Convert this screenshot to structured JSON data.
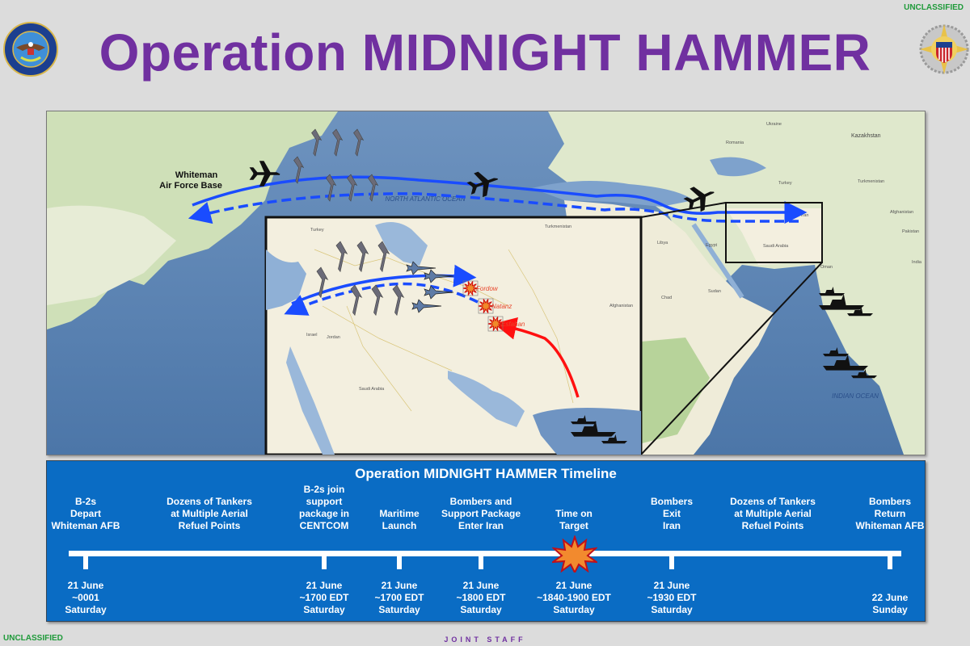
{
  "header": {
    "title": "Operation MIDNIGHT HAMMER",
    "classification_top": "UNCLASSIFIED",
    "classification_bottom": "UNCLASSIFIED",
    "footer": "JOINT STAFF",
    "left_seal": "DEPARTMENT OF DEFENSE · UNITED STATES OF AMERICA",
    "right_seal": "JOINT CHIEFS OF STAFF"
  },
  "map": {
    "origin_label": "Whiteman Air Force Base",
    "ocean_labels": [
      "NORTH ATLANTIC OCEAN",
      "INDIAN OCEAN"
    ],
    "country_labels": [
      "Ukraine",
      "Romania",
      "Turkey",
      "Turkmenistan",
      "Kazakhstan",
      "Afghanistan",
      "Pakistan",
      "India",
      "Libya",
      "Egypt",
      "Saudi Arabia",
      "Iran",
      "Sudan",
      "Chad",
      "Oman"
    ],
    "inset": {
      "targets": [
        "Fordow",
        "Natanz",
        "Esfahan"
      ],
      "country_labels": [
        "Turkey",
        "Turkmenistan",
        "Afghanistan",
        "Jordan",
        "Israel",
        "Saudi Arabia"
      ]
    },
    "colors": {
      "route": "#1a4cff",
      "maritime_strike": "#ff1010",
      "target": "#e8452a"
    }
  },
  "timeline": {
    "title": "Operation MIDNIGHT HAMMER Timeline",
    "events": [
      {
        "label": "B-2s\nDepart\nWhiteman AFB",
        "time": "21 June\n~0001\nSaturday"
      },
      {
        "label": "Dozens of Tankers\nat Multiple Aerial\nRefuel Points",
        "time": ""
      },
      {
        "label": "B-2s join\nsupport\npackage in\nCENTCOM",
        "time": "21 June\n~1700 EDT\nSaturday"
      },
      {
        "label": "Maritime\nLaunch",
        "time": "21 June\n~1700 EDT\nSaturday"
      },
      {
        "label": "Bombers and\nSupport Package\nEnter Iran",
        "time": "21 June\n~1800 EDT\nSaturday"
      },
      {
        "label": "Time on\nTarget",
        "time": "21 June\n~1840-1900 EDT\nSaturday"
      },
      {
        "label": "Bombers\nExit\nIran",
        "time": "21 June\n~1930 EDT\nSaturday"
      },
      {
        "label": "Dozens of Tankers\nat Multiple Aerial\nRefuel Points",
        "time": ""
      },
      {
        "label": "Bombers\nReturn\nWhiteman AFB",
        "time": "22 June\nSunday"
      }
    ]
  }
}
